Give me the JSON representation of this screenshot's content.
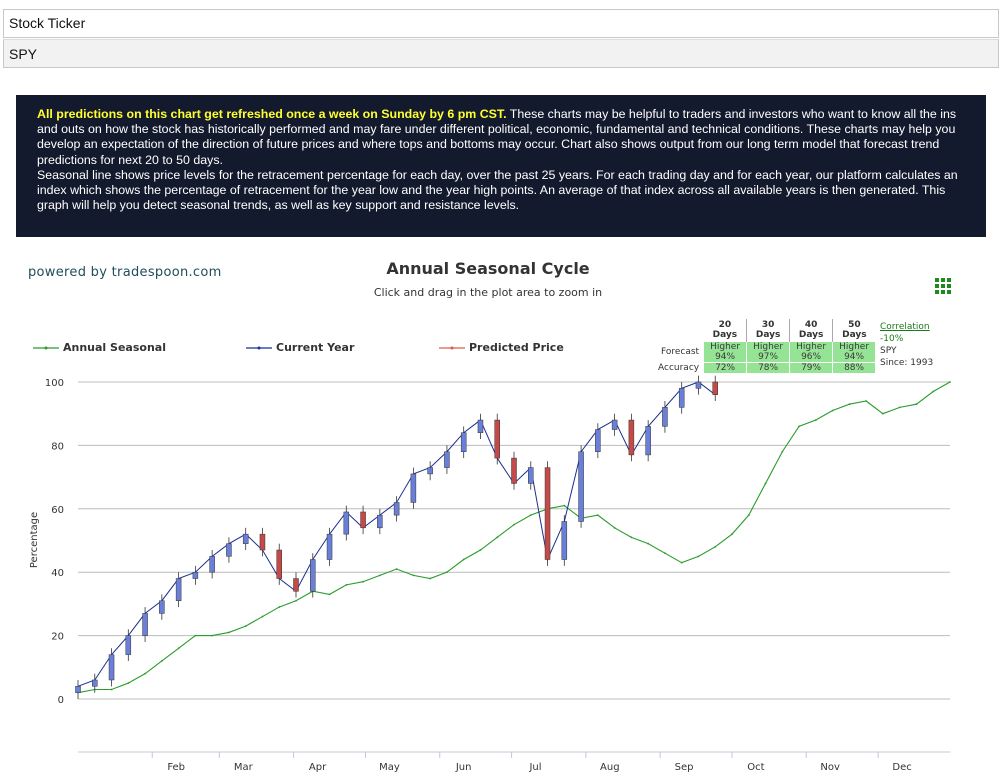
{
  "ticker": {
    "label": "Stock Ticker",
    "value": "SPY"
  },
  "banner": {
    "highlight": "All predictions on this chart get refreshed once a week on Sunday by 6 pm CST.",
    "text1": " These charts may be helpful to traders and investors who want to know all the ins and outs on how the stock has historically performed and may fare under different political, economic, fundamental and technical conditions. These charts may help you develop an expectation of the direction of future prices and where tops and bottoms may occur. Chart also shows output from our long term model that forecast trend predictions for next 20 to 50 days.",
    "text2": "Seasonal line shows price levels for the retracement percentage for each day, over the past 25 years. For each trading day and for each year, our platform calculates an index which shows the percentage of retracement for the year low and the year high points. An average of that index across all available years is then generated. This graph will help you detect seasonal trends, as well as key support and resistance levels."
  },
  "powered": "powered by tradespoon.com",
  "colors": {
    "seasonal": "#2a9d2a",
    "current": "#1a2f8f",
    "predicted": "#e05a4a",
    "up": "#6a7fd8",
    "down": "#c44a4a",
    "forecast_cell": "#95e395"
  },
  "forecast": {
    "headers": [
      "20 Days",
      "30 Days",
      "40 Days",
      "50 Days"
    ],
    "forecast_label": "Forecast",
    "accuracy_label": "Accuracy",
    "directions": [
      "Higher",
      "Higher",
      "Higher",
      "Higher"
    ],
    "probabilities": [
      "94%",
      "97%",
      "96%",
      "94%"
    ],
    "accuracy": [
      "72%",
      "78%",
      "79%",
      "88%"
    ],
    "correlation_label": "Correlation",
    "correlation_value": "-10%",
    "symbol": "SPY",
    "since": "Since: 1993"
  },
  "chart_data": {
    "type": "line",
    "title": "Annual Seasonal Cycle",
    "subtitle": "Click and drag in the plot area to zoom in",
    "xlabel": "",
    "ylabel": "Percentage",
    "ylim": [
      0,
      100
    ],
    "y_ticks": [
      0,
      20,
      40,
      60,
      80,
      100
    ],
    "x_ticks": [
      "Feb",
      "Mar",
      "Apr",
      "May",
      "Jun",
      "Jul",
      "Aug",
      "Sep",
      "Oct",
      "Nov",
      "Dec"
    ],
    "grid": true,
    "legend_position": "top-left",
    "series": [
      {
        "name": "Annual Seasonal",
        "x": [
          0,
          7,
          14,
          21,
          28,
          35,
          42,
          49,
          56,
          63,
          70,
          77,
          84,
          91,
          98,
          105,
          112,
          119,
          126,
          133,
          140,
          147,
          154,
          161,
          168,
          175,
          182,
          189,
          196,
          203,
          210,
          217,
          224,
          231,
          238,
          245,
          252,
          259,
          266,
          273,
          280,
          287,
          294,
          301,
          308,
          315,
          322,
          329,
          336,
          343,
          350,
          357,
          364
        ],
        "values": [
          2,
          3,
          3,
          5,
          8,
          12,
          16,
          20,
          20,
          21,
          23,
          26,
          29,
          31,
          34,
          33,
          36,
          37,
          39,
          41,
          39,
          38,
          40,
          44,
          47,
          51,
          55,
          58,
          60,
          61,
          57,
          58,
          54,
          51,
          49,
          46,
          43,
          45,
          48,
          52,
          58,
          68,
          78,
          86,
          88,
          91,
          93,
          94,
          90,
          92,
          93,
          97,
          100
        ]
      },
      {
        "name": "Current Year",
        "x": [
          0,
          7,
          14,
          21,
          28,
          35,
          42,
          49,
          56,
          63,
          70,
          77,
          84,
          91,
          98,
          105,
          112,
          119,
          126,
          133,
          140,
          147,
          154,
          161,
          168,
          175,
          182,
          189,
          196,
          203,
          210,
          217,
          224,
          231,
          238,
          245,
          252,
          259,
          266
        ],
        "values": [
          4,
          6,
          14,
          20,
          27,
          31,
          38,
          40,
          45,
          49,
          52,
          47,
          38,
          34,
          44,
          52,
          59,
          54,
          58,
          62,
          71,
          73,
          78,
          84,
          88,
          76,
          68,
          73,
          44,
          56,
          78,
          85,
          88,
          77,
          86,
          92,
          98,
          100,
          96
        ]
      },
      {
        "name": "Predicted Price",
        "x": [],
        "values": []
      }
    ]
  }
}
